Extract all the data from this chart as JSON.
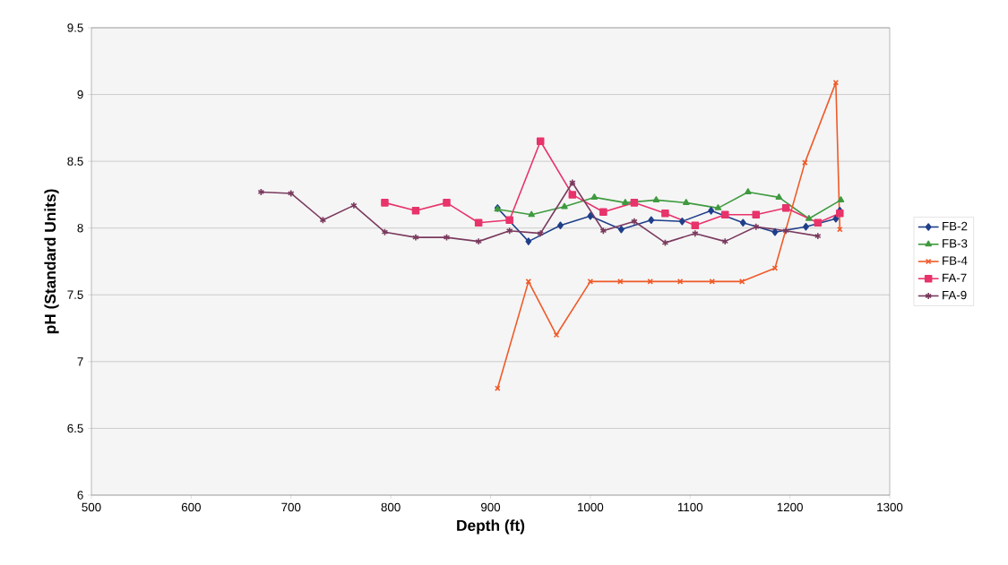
{
  "chart_data": {
    "type": "line",
    "xlabel": "Depth (ft)",
    "ylabel": "pH (Standard Units)",
    "xlim": [
      500,
      1300
    ],
    "xticks": [
      500,
      600,
      700,
      800,
      900,
      1000,
      1100,
      1200,
      1300
    ],
    "ylim": [
      6,
      9.5
    ],
    "yticks": [
      6,
      6.5,
      7,
      7.5,
      8,
      8.5,
      9,
      9.5
    ],
    "grid": "y",
    "legend": "right",
    "series": [
      {
        "name": "FB-2",
        "color": "#1f3f8a",
        "marker": "diamond",
        "x": [
          907,
          938,
          970,
          1000,
          1031,
          1061,
          1092,
          1121,
          1153,
          1185,
          1216,
          1246,
          1250
        ],
        "values": [
          8.15,
          7.9,
          8.02,
          8.09,
          7.99,
          8.06,
          8.05,
          8.13,
          8.04,
          7.97,
          8.01,
          8.07,
          8.13
        ]
      },
      {
        "name": "FB-3",
        "color": "#3f9a3f",
        "marker": "triangle",
        "x": [
          907,
          941,
          974,
          1004,
          1035,
          1066,
          1096,
          1128,
          1158,
          1189,
          1219,
          1251
        ],
        "values": [
          8.14,
          8.1,
          8.16,
          8.23,
          8.19,
          8.21,
          8.19,
          8.15,
          8.27,
          8.23,
          8.07,
          8.21
        ]
      },
      {
        "name": "FB-4",
        "color": "#f05a28",
        "marker": "cross",
        "x": [
          907,
          938,
          966,
          1000,
          1030,
          1060,
          1090,
          1122,
          1152,
          1185,
          1215,
          1246,
          1250
        ],
        "values": [
          6.8,
          7.6,
          7.2,
          7.6,
          7.6,
          7.6,
          7.6,
          7.6,
          7.6,
          7.7,
          8.49,
          9.09,
          7.99
        ]
      },
      {
        "name": "FA-7",
        "color": "#e8336b",
        "marker": "square",
        "x": [
          794,
          825,
          856,
          888,
          919,
          950,
          982,
          1013,
          1044,
          1075,
          1105,
          1135,
          1166,
          1196,
          1228,
          1250
        ],
        "values": [
          8.19,
          8.13,
          8.19,
          8.04,
          8.06,
          8.65,
          8.25,
          8.12,
          8.19,
          8.11,
          8.02,
          8.1,
          8.1,
          8.15,
          8.04,
          8.11
        ]
      },
      {
        "name": "FA-9",
        "color": "#7a3a5e",
        "marker": "cross",
        "x": [
          670,
          700,
          732,
          763,
          794,
          825,
          856,
          888,
          919,
          950,
          982,
          1013,
          1044,
          1075,
          1105,
          1135,
          1166,
          1196,
          1228
        ],
        "values": [
          8.27,
          8.26,
          8.06,
          8.17,
          7.97,
          7.93,
          7.93,
          7.9,
          7.98,
          7.96,
          8.34,
          7.98,
          8.05,
          7.89,
          7.96,
          7.9,
          8.01,
          7.98,
          7.94
        ]
      }
    ]
  }
}
